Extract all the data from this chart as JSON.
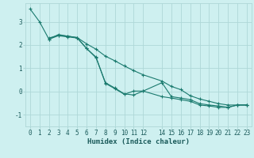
{
  "background_color": "#cef0f0",
  "grid_color": "#aed8d8",
  "line_color": "#1a7a6e",
  "marker": "+",
  "xlabel": "Humidex (Indice chaleur)",
  "xlabel_fontsize": 6.5,
  "tick_fontsize": 5.5,
  "ylim": [
    -1.5,
    3.8
  ],
  "xlim": [
    -0.5,
    23.5
  ],
  "yticks": [
    -1,
    0,
    1,
    2,
    3
  ],
  "xticks": [
    0,
    1,
    2,
    3,
    4,
    5,
    6,
    7,
    8,
    9,
    10,
    11,
    12,
    14,
    15,
    16,
    17,
    18,
    19,
    20,
    21,
    22,
    23
  ],
  "xtick_labels": [
    "0",
    "1",
    "2",
    "3",
    "4",
    "5",
    "6",
    "7",
    "8",
    "9",
    "10",
    "11",
    "12",
    "14",
    "15",
    "16",
    "17",
    "18",
    "19",
    "20",
    "21",
    "22",
    "23"
  ],
  "series1_x": [
    0,
    1,
    2,
    3,
    4,
    5,
    6,
    7,
    8,
    9,
    10,
    11,
    12,
    14,
    15,
    16,
    17,
    18,
    19,
    20,
    21,
    22,
    23
  ],
  "series1_y": [
    3.55,
    3.0,
    2.25,
    2.4,
    2.35,
    2.3,
    1.85,
    1.45,
    0.38,
    0.15,
    -0.1,
    -0.15,
    0.02,
    0.38,
    -0.22,
    -0.28,
    -0.35,
    -0.52,
    -0.58,
    -0.62,
    -0.68,
    -0.58,
    -0.58
  ],
  "series2_x": [
    2,
    3,
    4,
    5,
    6,
    7,
    8,
    9,
    10,
    11,
    12,
    14,
    15,
    16,
    17,
    18,
    19,
    20,
    21,
    22,
    23
  ],
  "series2_y": [
    2.25,
    2.45,
    2.38,
    2.32,
    1.85,
    1.48,
    0.35,
    0.12,
    -0.12,
    0.02,
    0.02,
    -0.22,
    -0.28,
    -0.35,
    -0.42,
    -0.58,
    -0.62,
    -0.68,
    -0.68,
    -0.58,
    -0.58
  ],
  "series3_x": [
    2,
    3,
    4,
    5,
    6,
    7,
    8,
    9,
    10,
    11,
    12,
    14,
    15,
    16,
    17,
    18,
    19,
    20,
    21,
    22,
    23
  ],
  "series3_y": [
    2.3,
    2.42,
    2.38,
    2.32,
    2.05,
    1.82,
    1.52,
    1.32,
    1.1,
    0.9,
    0.72,
    0.45,
    0.22,
    0.08,
    -0.18,
    -0.32,
    -0.42,
    -0.52,
    -0.58,
    -0.58,
    -0.58
  ]
}
